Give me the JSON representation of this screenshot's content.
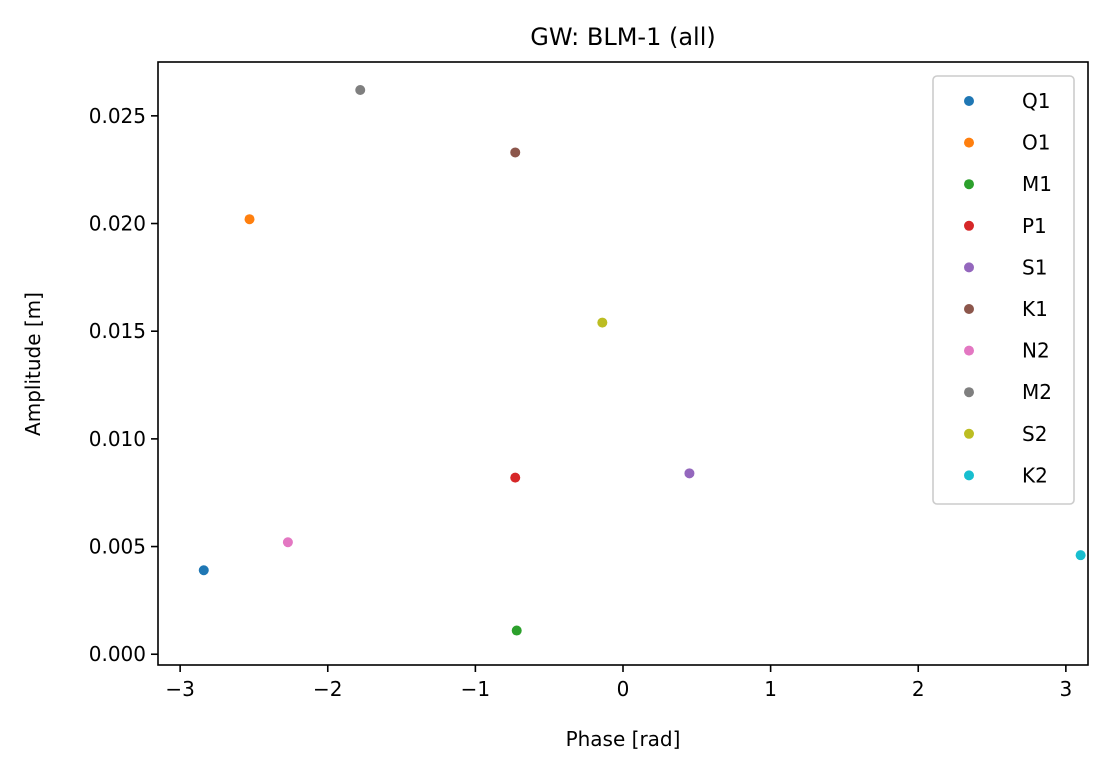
{
  "chart_data": {
    "type": "scatter",
    "title": "GW: BLM-1 (all)",
    "xlabel": "Phase [rad]",
    "ylabel": "Amplitude [m]",
    "xlim": [
      -3.15,
      3.15
    ],
    "ylim": [
      -0.0005,
      0.0275
    ],
    "xticks": [
      -3,
      -2,
      -1,
      0,
      1,
      2,
      3
    ],
    "xtick_labels": [
      "−3",
      "−2",
      "−1",
      "0",
      "1",
      "2",
      "3"
    ],
    "yticks": [
      0.0,
      0.005,
      0.01,
      0.015,
      0.02,
      0.025
    ],
    "ytick_labels": [
      "0.000",
      "0.005",
      "0.010",
      "0.015",
      "0.020",
      "0.025"
    ],
    "grid": false,
    "legend_position": "top-right",
    "series": [
      {
        "name": "Q1",
        "color": "#1f77b4",
        "x": -2.84,
        "y": 0.0039
      },
      {
        "name": "O1",
        "color": "#ff7f0e",
        "x": -2.53,
        "y": 0.0202
      },
      {
        "name": "M1",
        "color": "#2ca02c",
        "x": -0.72,
        "y": 0.0011
      },
      {
        "name": "P1",
        "color": "#d62728",
        "x": -0.73,
        "y": 0.0082
      },
      {
        "name": "S1",
        "color": "#9467bd",
        "x": 0.45,
        "y": 0.0084
      },
      {
        "name": "K1",
        "color": "#8c564b",
        "x": -0.73,
        "y": 0.0233
      },
      {
        "name": "N2",
        "color": "#e377c2",
        "x": -2.27,
        "y": 0.0052
      },
      {
        "name": "M2",
        "color": "#7f7f7f",
        "x": -1.78,
        "y": 0.0262
      },
      {
        "name": "S2",
        "color": "#bcbd22",
        "x": -0.14,
        "y": 0.0154
      },
      {
        "name": "K2",
        "color": "#17becf",
        "x": 3.1,
        "y": 0.0046
      }
    ]
  }
}
